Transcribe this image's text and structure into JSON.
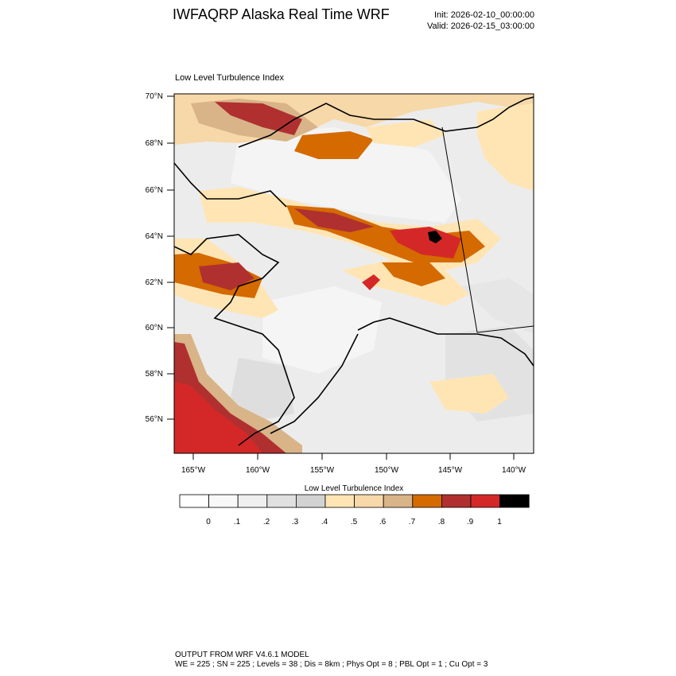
{
  "header": {
    "title": "IWFAQRP Alaska Real Time WRF",
    "init": "Init: 2026-02-10_00:00:00",
    "valid": "Valid: 2026-02-15_03:00:00"
  },
  "panel": {
    "title": "Low Level Turbulence Index",
    "lat_labels": [
      "70°N",
      "68°N",
      "66°N",
      "64°N",
      "62°N",
      "60°N",
      "58°N",
      "56°N"
    ],
    "lon_labels": [
      "165°W",
      "160°W",
      "155°W",
      "150°W",
      "145°W",
      "140°W"
    ]
  },
  "colorbar": {
    "title": "Low Level Turbulence Index",
    "labels": [
      "0",
      ".1",
      ".2",
      ".3",
      ".4",
      ".5",
      ".6",
      ".7",
      ".8",
      ".9",
      "1"
    ],
    "colors": [
      "#ffffff",
      "#f8f8f8",
      "#efefef",
      "#e0e0e0",
      "#d2d2d2",
      "#ffe5b4",
      "#f7d8a8",
      "#d8b488",
      "#d46a00",
      "#b03030",
      "#d42828",
      "#000000"
    ]
  },
  "footer": {
    "line1": "OUTPUT FROM WRF V4.6.1 MODEL",
    "line2": "WE = 225 ; SN = 225 ; Levels = 38 ; Dis = 8km ; Phys Opt = 8 ; PBL Opt = 1 ; Cu Opt = 3"
  }
}
